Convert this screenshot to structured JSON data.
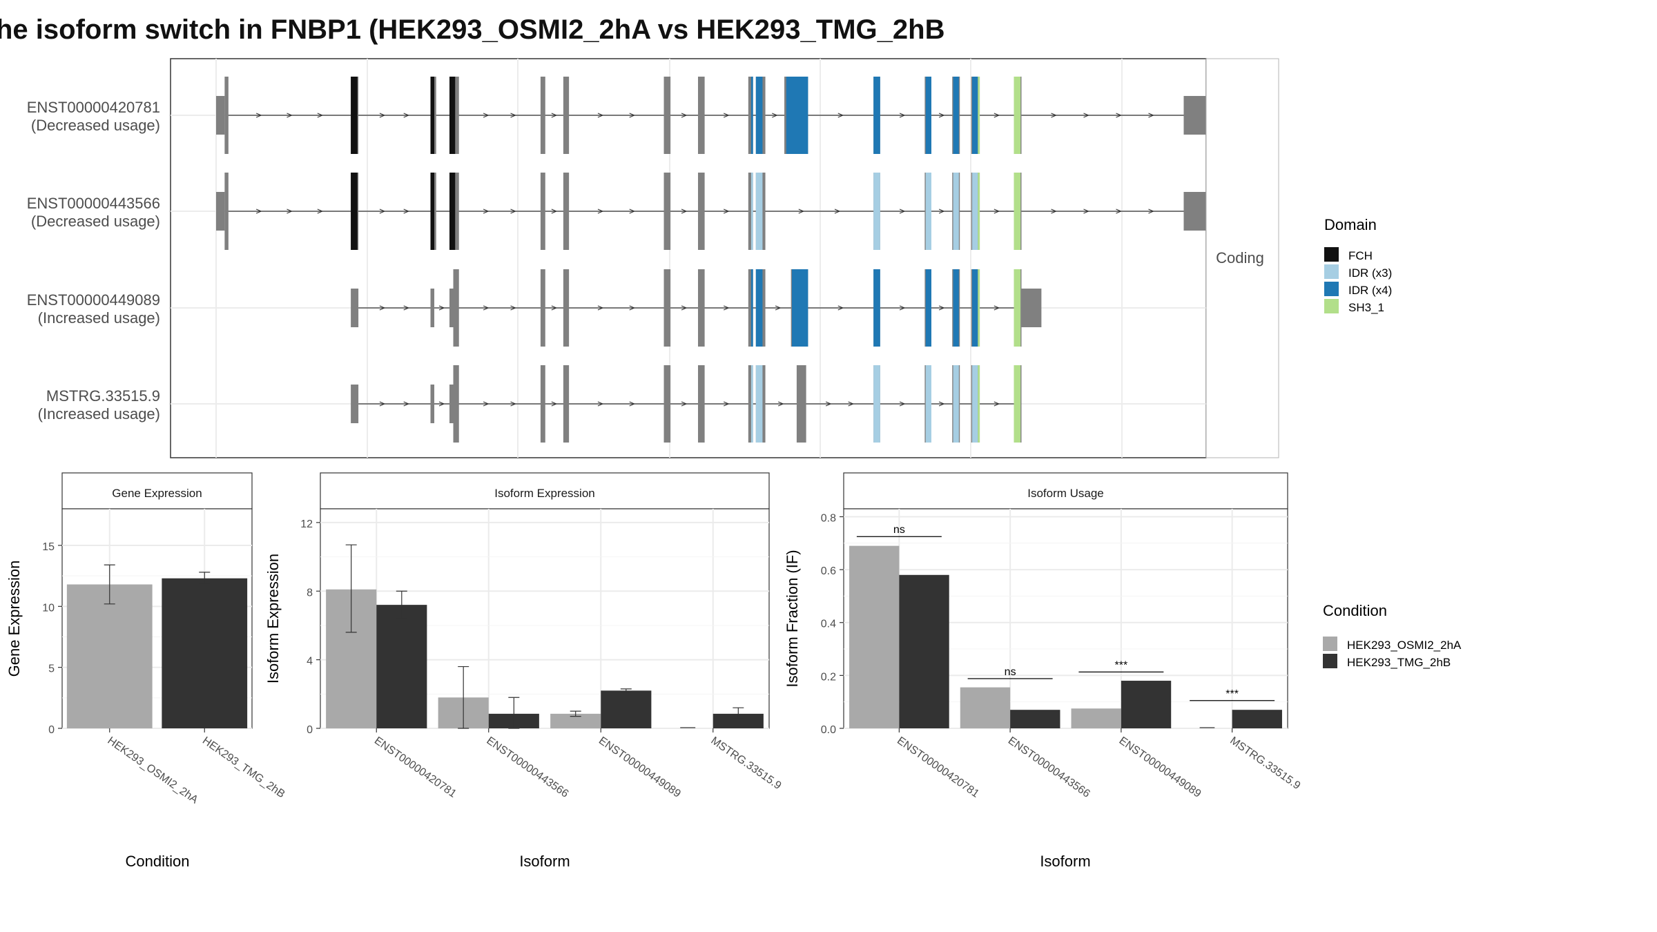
{
  "title": "he isoform switch in FNBP1 (HEK293_OSMI2_2hA vs HEK293_TMG_2hB",
  "colors": {
    "condition_a": "#a9a9a9",
    "condition_b": "#333333",
    "exon": "#808080",
    "FCH": "#111111",
    "IDR (x3)": "#a6cee3",
    "IDR (x4)": "#1f78b4",
    "SH3_1": "#b2df8a"
  },
  "chart_data": [
    {
      "type": "gene-structure",
      "facet_label": "Coding",
      "x_range": [
        0,
        1000
      ],
      "transcripts": [
        {
          "label": "ENST00000420781",
          "usage": "(Decreased usage)",
          "intron": [
            9,
            1020
          ],
          "exons": [
            [
              0,
              9,
              0
            ],
            [
              9,
              13,
              1
            ],
            [
              142,
              150,
              1
            ],
            [
              226,
              232,
              1
            ],
            [
              246,
              256,
              1
            ],
            [
              342,
              347,
              1
            ],
            [
              366,
              372,
              1
            ],
            [
              472,
              479,
              1
            ],
            [
              508,
              515,
              1
            ],
            [
              561,
              566,
              1
            ],
            [
              569,
              579,
              1
            ],
            [
              599,
              624,
              1
            ],
            [
              693,
              700,
              1
            ],
            [
              747,
              754,
              1
            ],
            [
              776,
              784,
              1
            ],
            [
              796,
              805,
              1
            ],
            [
              841,
              849,
              1
            ],
            [
              1020,
              1060,
              0
            ]
          ],
          "domains": [
            {
              "name": "FCH",
              "start": 142,
              "end": 149
            },
            {
              "name": "FCH",
              "start": 226,
              "end": 230
            },
            {
              "name": "FCH",
              "start": 246,
              "end": 252
            },
            {
              "name": "IDR (x4)",
              "start": 564,
              "end": 566
            },
            {
              "name": "IDR (x4)",
              "start": 569,
              "end": 576
            },
            {
              "name": "IDR (x4)",
              "start": 601,
              "end": 624
            },
            {
              "name": "IDR (x4)",
              "start": 693,
              "end": 700
            },
            {
              "name": "IDR (x4)",
              "start": 748,
              "end": 754
            },
            {
              "name": "IDR (x4)",
              "start": 777,
              "end": 783
            },
            {
              "name": "IDR (x4)",
              "start": 797,
              "end": 803
            },
            {
              "name": "SH3_1",
              "start": 803,
              "end": 805
            },
            {
              "name": "SH3_1",
              "start": 841,
              "end": 848
            }
          ]
        },
        {
          "label": "ENST00000443566",
          "usage": "(Decreased usage)",
          "intron": [
            9,
            1020
          ],
          "exons": [
            [
              0,
              9,
              0
            ],
            [
              9,
              13,
              1
            ],
            [
              142,
              150,
              1
            ],
            [
              226,
              232,
              1
            ],
            [
              246,
              256,
              1
            ],
            [
              342,
              347,
              1
            ],
            [
              366,
              372,
              1
            ],
            [
              472,
              479,
              1
            ],
            [
              508,
              515,
              1
            ],
            [
              561,
              566,
              1
            ],
            [
              569,
              579,
              1
            ],
            [
              693,
              700,
              1
            ],
            [
              747,
              754,
              1
            ],
            [
              776,
              784,
              1
            ],
            [
              796,
              805,
              1
            ],
            [
              841,
              849,
              1
            ],
            [
              1020,
              1060,
              0
            ]
          ],
          "domains": [
            {
              "name": "FCH",
              "start": 142,
              "end": 149
            },
            {
              "name": "FCH",
              "start": 226,
              "end": 230
            },
            {
              "name": "FCH",
              "start": 246,
              "end": 252
            },
            {
              "name": "IDR (x3)",
              "start": 564,
              "end": 566
            },
            {
              "name": "IDR (x3)",
              "start": 569,
              "end": 576
            },
            {
              "name": "IDR (x3)",
              "start": 693,
              "end": 700
            },
            {
              "name": "IDR (x3)",
              "start": 748,
              "end": 754
            },
            {
              "name": "IDR (x3)",
              "start": 777,
              "end": 783
            },
            {
              "name": "IDR (x3)",
              "start": 797,
              "end": 803
            },
            {
              "name": "SH3_1",
              "start": 803,
              "end": 805
            },
            {
              "name": "SH3_1",
              "start": 841,
              "end": 848
            }
          ]
        },
        {
          "label": "ENST00000449089",
          "usage": "(Increased usage)",
          "intron": [
            150,
            849
          ],
          "exons": [
            [
              142,
              150,
              0
            ],
            [
              226,
              230,
              0
            ],
            [
              246,
              250,
              0
            ],
            [
              250,
              256,
              1
            ],
            [
              342,
              347,
              1
            ],
            [
              366,
              372,
              1
            ],
            [
              472,
              479,
              1
            ],
            [
              508,
              515,
              1
            ],
            [
              561,
              566,
              1
            ],
            [
              569,
              579,
              1
            ],
            [
              606,
              624,
              1
            ],
            [
              693,
              700,
              1
            ],
            [
              747,
              754,
              1
            ],
            [
              776,
              784,
              1
            ],
            [
              796,
              805,
              1
            ],
            [
              841,
              849,
              1
            ],
            [
              849,
              870,
              0
            ]
          ],
          "domains": [
            {
              "name": "IDR (x4)",
              "start": 564,
              "end": 566
            },
            {
              "name": "IDR (x4)",
              "start": 569,
              "end": 576
            },
            {
              "name": "IDR (x4)",
              "start": 607,
              "end": 624
            },
            {
              "name": "IDR (x4)",
              "start": 693,
              "end": 700
            },
            {
              "name": "IDR (x4)",
              "start": 748,
              "end": 754
            },
            {
              "name": "IDR (x4)",
              "start": 777,
              "end": 783
            },
            {
              "name": "IDR (x4)",
              "start": 797,
              "end": 803
            },
            {
              "name": "SH3_1",
              "start": 803,
              "end": 805
            },
            {
              "name": "SH3_1",
              "start": 841,
              "end": 848
            }
          ]
        },
        {
          "label": "MSTRG.33515.9",
          "usage": "(Increased usage)",
          "intron": [
            150,
            849
          ],
          "exons": [
            [
              142,
              150,
              0
            ],
            [
              226,
              230,
              0
            ],
            [
              246,
              250,
              0
            ],
            [
              250,
              256,
              1
            ],
            [
              342,
              347,
              1
            ],
            [
              366,
              372,
              1
            ],
            [
              472,
              479,
              1
            ],
            [
              508,
              515,
              1
            ],
            [
              561,
              566,
              1
            ],
            [
              569,
              579,
              1
            ],
            [
              612,
              622,
              1
            ],
            [
              693,
              700,
              1
            ],
            [
              747,
              754,
              1
            ],
            [
              776,
              784,
              1
            ],
            [
              796,
              805,
              1
            ],
            [
              841,
              849,
              1
            ]
          ],
          "domains": [
            {
              "name": "IDR (x3)",
              "start": 564,
              "end": 566
            },
            {
              "name": "IDR (x3)",
              "start": 569,
              "end": 576
            },
            {
              "name": "IDR (x3)",
              "start": 693,
              "end": 700
            },
            {
              "name": "IDR (x3)",
              "start": 748,
              "end": 754
            },
            {
              "name": "IDR (x3)",
              "start": 777,
              "end": 783
            },
            {
              "name": "IDR (x3)",
              "start": 797,
              "end": 803
            },
            {
              "name": "SH3_1",
              "start": 803,
              "end": 805
            },
            {
              "name": "SH3_1",
              "start": 841,
              "end": 848
            }
          ]
        }
      ]
    },
    {
      "type": "bar",
      "strip": "Gene Expression",
      "xlabel": "Condition",
      "ylabel": "Gene Expression",
      "ylim": [
        0,
        18
      ],
      "yticks": [
        0,
        5,
        10,
        15
      ],
      "categories": [
        "HEK293_OSMI2_2hA",
        "HEK293_TMG_2hB"
      ],
      "values": [
        11.8,
        12.3
      ],
      "error": [
        [
          10.2,
          13.4
        ],
        [
          11.9,
          12.8
        ]
      ]
    },
    {
      "type": "bar",
      "strip": "Isoform Expression",
      "xlabel": "Isoform",
      "ylabel": "Isoform Expression",
      "ylim": [
        0,
        12.8
      ],
      "yticks": [
        0,
        4,
        8,
        12
      ],
      "categories": [
        "ENST00000420781",
        "ENST00000443566",
        "ENST00000449089",
        "MSTRG.33515.9"
      ],
      "series": [
        {
          "name": "HEK293_OSMI2_2hA",
          "values": [
            8.1,
            1.8,
            0.85,
            0.0
          ],
          "error": [
            [
              5.6,
              10.7
            ],
            [
              0.0,
              3.6
            ],
            [
              0.7,
              1.0
            ],
            [
              0.0,
              0.0
            ]
          ]
        },
        {
          "name": "HEK293_TMG_2hB",
          "values": [
            7.2,
            0.85,
            2.2,
            0.85
          ],
          "error": [
            [
              6.4,
              8.0
            ],
            [
              0.0,
              1.8
            ],
            [
              2.1,
              2.3
            ],
            [
              0.6,
              1.2
            ]
          ]
        }
      ]
    },
    {
      "type": "bar",
      "strip": "Isoform Usage",
      "xlabel": "Isoform",
      "ylabel": "Isoform Fraction (IF)",
      "ylim": [
        0,
        0.83
      ],
      "yticks": [
        0.0,
        0.2,
        0.4,
        0.6,
        0.8
      ],
      "yticklabels": [
        "0.0",
        "0.2",
        "0.4",
        "0.6",
        "0.8"
      ],
      "categories": [
        "ENST00000420781",
        "ENST00000443566",
        "ENST00000449089",
        "MSTRG.33515.9"
      ],
      "series": [
        {
          "name": "HEK293_OSMI2_2hA",
          "values": [
            0.69,
            0.155,
            0.075,
            0.0
          ]
        },
        {
          "name": "HEK293_TMG_2hB",
          "values": [
            0.58,
            0.07,
            0.18,
            0.07
          ]
        }
      ],
      "significance": [
        {
          "label": "ns",
          "y": 0.725
        },
        {
          "label": "ns",
          "y": 0.188
        },
        {
          "label": "***",
          "y": 0.213
        },
        {
          "label": "***",
          "y": 0.105
        }
      ]
    }
  ],
  "legends": {
    "domain": {
      "title": "Domain",
      "items": [
        "FCH",
        "IDR (x3)",
        "IDR (x4)",
        "SH3_1"
      ]
    },
    "condition": {
      "title": "Condition",
      "items": [
        "HEK293_OSMI2_2hA",
        "HEK293_TMG_2hB"
      ]
    }
  }
}
